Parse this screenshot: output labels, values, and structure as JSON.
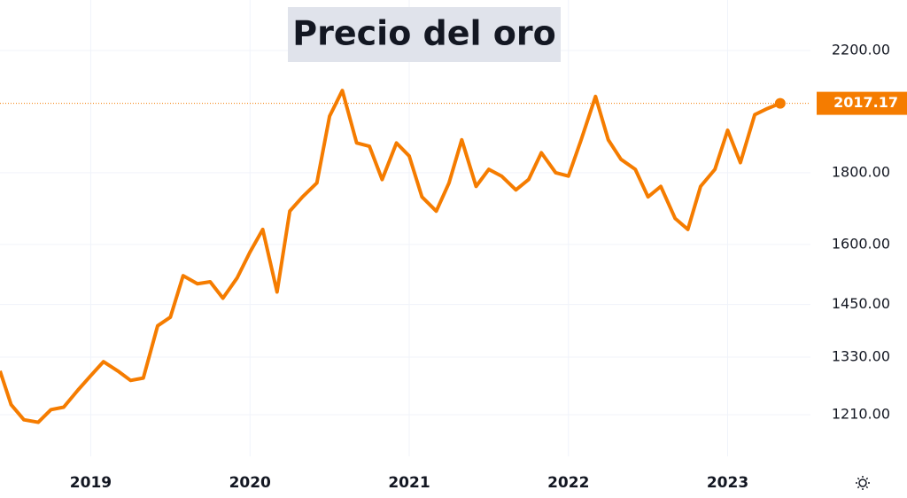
{
  "chart_data": {
    "type": "line",
    "title": "Precio del oro",
    "color": "#f57c00",
    "log_scale": true,
    "grid": true,
    "x": [
      2018.43,
      2018.5,
      2018.58,
      2018.67,
      2018.75,
      2018.83,
      2018.92,
      2019.0,
      2019.08,
      2019.17,
      2019.25,
      2019.33,
      2019.42,
      2019.5,
      2019.58,
      2019.67,
      2019.75,
      2019.83,
      2019.92,
      2020.0,
      2020.08,
      2020.17,
      2020.25,
      2020.33,
      2020.42,
      2020.5,
      2020.58,
      2020.67,
      2020.75,
      2020.83,
      2020.92,
      2021.0,
      2021.08,
      2021.17,
      2021.25,
      2021.33,
      2021.42,
      2021.5,
      2021.58,
      2021.67,
      2021.75,
      2021.83,
      2021.92,
      2022.0,
      2022.08,
      2022.17,
      2022.25,
      2022.33,
      2022.42,
      2022.5,
      2022.58,
      2022.67,
      2022.75,
      2022.83,
      2022.92,
      2023.0,
      2023.08,
      2023.17,
      2023.25,
      2023.33
    ],
    "values": [
      1300,
      1230,
      1200,
      1195,
      1220,
      1225,
      1260,
      1290,
      1320,
      1300,
      1280,
      1285,
      1400,
      1420,
      1520,
      1500,
      1505,
      1465,
      1515,
      1580,
      1640,
      1480,
      1690,
      1730,
      1770,
      1975,
      2060,
      1890,
      1880,
      1780,
      1890,
      1850,
      1730,
      1690,
      1770,
      1900,
      1760,
      1810,
      1790,
      1750,
      1780,
      1860,
      1800,
      1790,
      1900,
      2040,
      1900,
      1840,
      1810,
      1730,
      1760,
      1670,
      1640,
      1760,
      1810,
      1930,
      1830,
      1980,
      2000,
      2017.17
    ],
    "xlim": [
      2018.43,
      2023.52
    ],
    "xticks": [
      2019,
      2020,
      2021,
      2022,
      2023
    ],
    "ylim": [
      1130,
      2390
    ],
    "yticks": [
      {
        "value": 1210,
        "label": "1210.00"
      },
      {
        "value": 1330,
        "label": "1330.00"
      },
      {
        "value": 1450,
        "label": "1450.00"
      },
      {
        "value": 1600,
        "label": "1600.00"
      },
      {
        "value": 1800,
        "label": "1800.00"
      },
      {
        "value": 2200,
        "label": "2200.00"
      }
    ]
  }
}
